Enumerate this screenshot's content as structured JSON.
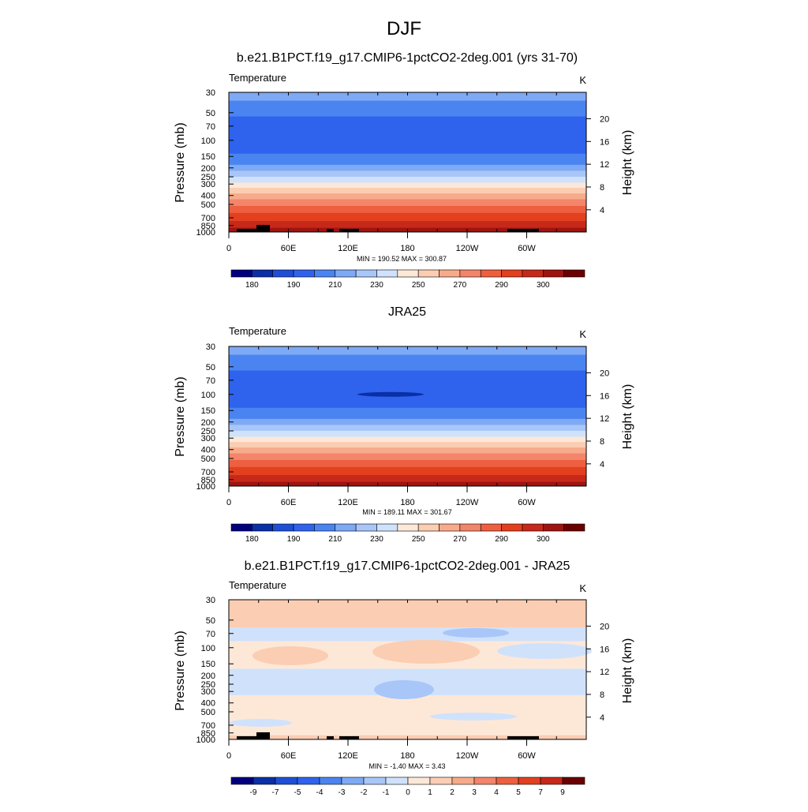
{
  "page": {
    "title": "DJF"
  },
  "colors": {
    "temperature_levels": [
      "#00007f",
      "#0a2fa6",
      "#1e4fd6",
      "#2f63ee",
      "#4a84f0",
      "#7ea9f5",
      "#a9c6f8",
      "#d0e2fb",
      "#fde8d8",
      "#fbcdb2",
      "#f7ab8a",
      "#f3856a",
      "#ee5f3f",
      "#e2401f",
      "#c6281a",
      "#9e1410",
      "#6b0000"
    ],
    "difference_levels": [
      "#00007f",
      "#0a2fa6",
      "#1e4fd6",
      "#2f63ee",
      "#4a84f0",
      "#7ea9f5",
      "#a9c6f8",
      "#d0e2fb",
      "#fde8d8",
      "#fbcdb2",
      "#f7ab8a",
      "#f3856a",
      "#ee5f3f",
      "#e2401f",
      "#c6281a",
      "#6b0000"
    ],
    "topography": "#000000"
  },
  "chart_data": [
    {
      "type": "heatmap",
      "title": "b.e21.B1PCT.f19_g17.CMIP6-1pctCO2-2deg.001 (yrs 31-70)",
      "variable": "Temperature",
      "units": "K",
      "ylabel": "Pressure (mb)",
      "ylabel_right": "Height (km)",
      "x_ticks": [
        "0",
        "60E",
        "120E",
        "180",
        "120W",
        "60W"
      ],
      "y_ticks": [
        "30",
        "50",
        "70",
        "100",
        "150",
        "200",
        "250",
        "300",
        "400",
        "500",
        "700",
        "850",
        "1000"
      ],
      "height_ticks": [
        "20",
        "16",
        "12",
        "8",
        "4"
      ],
      "stats": "MIN = 190.52  MAX = 300.87",
      "colorbar_labels": [
        "180",
        "190",
        "210",
        "230",
        "250",
        "270",
        "290",
        "300"
      ],
      "has_topography": true
    },
    {
      "type": "heatmap",
      "title": "JRA25",
      "variable": "Temperature",
      "units": "K",
      "ylabel": "Pressure (mb)",
      "ylabel_right": "Height (km)",
      "x_ticks": [
        "0",
        "60E",
        "120E",
        "180",
        "120W",
        "60W"
      ],
      "y_ticks": [
        "30",
        "50",
        "70",
        "100",
        "150",
        "200",
        "250",
        "300",
        "400",
        "500",
        "700",
        "850",
        "1000"
      ],
      "height_ticks": [
        "20",
        "16",
        "12",
        "8",
        "4"
      ],
      "stats": "MIN = 189.11  MAX = 301.67",
      "colorbar_labels": [
        "180",
        "190",
        "210",
        "230",
        "250",
        "270",
        "290",
        "300"
      ],
      "has_topography": false
    },
    {
      "type": "heatmap",
      "title": "b.e21.B1PCT.f19_g17.CMIP6-1pctCO2-2deg.001 - JRA25",
      "variable": "Temperature",
      "units": "K",
      "ylabel": "Pressure (mb)",
      "ylabel_right": "Height (km)",
      "x_ticks": [
        "0",
        "60E",
        "120E",
        "180",
        "120W",
        "60W"
      ],
      "y_ticks": [
        "30",
        "50",
        "70",
        "100",
        "150",
        "200",
        "250",
        "300",
        "400",
        "500",
        "700",
        "850",
        "1000"
      ],
      "height_ticks": [
        "20",
        "16",
        "12",
        "8",
        "4"
      ],
      "stats": "MIN =  -1.40  MAX =   3.43",
      "colorbar_labels": [
        "-9",
        "-7",
        "-5",
        "-4",
        "-3",
        "-2",
        "-1",
        "0",
        "1",
        "2",
        "3",
        "4",
        "5",
        "7",
        "9"
      ],
      "has_topography": true
    }
  ]
}
